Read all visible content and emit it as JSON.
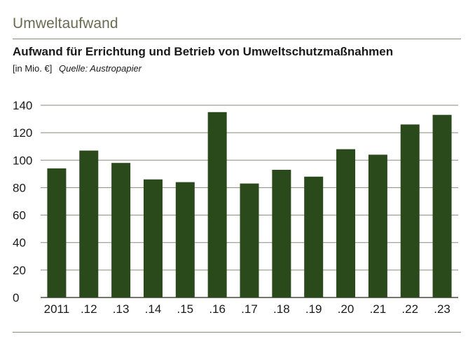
{
  "header": {
    "section_title": "Umweltaufwand"
  },
  "chart_data": {
    "type": "bar",
    "title": "Aufwand für Errichtung und Betrieb von Umweltschutzmaßnahmen",
    "unit_label": "[in Mio. €]",
    "source": "Quelle: Austropapier",
    "categories": [
      "2011",
      ".12",
      ".13",
      ".14",
      ".15",
      ".16",
      ".17",
      ".18",
      ".19",
      ".20",
      ".21",
      ".22",
      ".23"
    ],
    "values": [
      94,
      107,
      98,
      86,
      84,
      135,
      83,
      93,
      88,
      108,
      104,
      126,
      133
    ],
    "ylim": [
      0,
      140
    ],
    "yticks": [
      0,
      20,
      40,
      60,
      80,
      100,
      120,
      140
    ],
    "xlabel": "",
    "ylabel": "",
    "grid": true,
    "bar_color": "#2b4a1c",
    "grid_color": "#8a8a7a"
  }
}
